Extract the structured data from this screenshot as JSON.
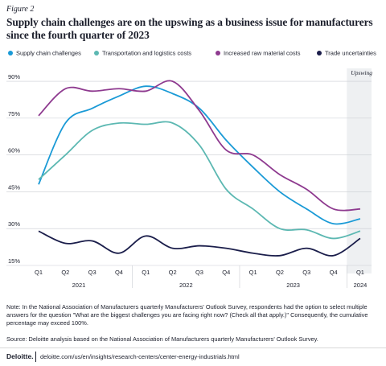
{
  "chart_data": {
    "type": "line",
    "figure_label": "Figure 2",
    "title": "Supply chain challenges are on the upswing as a business issue for manufacturers since the fourth quarter of 2023",
    "categories": [
      "Q1",
      "Q2",
      "Q3",
      "Q4",
      "Q1",
      "Q2",
      "Q3",
      "Q4",
      "Q1",
      "Q2",
      "Q3",
      "Q4",
      "Q1"
    ],
    "years": [
      "2021",
      "2022",
      "2023",
      "2024"
    ],
    "annotation": "Upswing",
    "series": [
      {
        "name": "Supply chain challenges",
        "color": "#1a9ad6",
        "values": [
          48,
          73,
          79,
          84,
          88,
          85,
          79,
          66,
          55,
          45,
          38,
          32,
          34
        ]
      },
      {
        "name": "Transportation and logistics costs",
        "color": "#5cb8b2",
        "values": [
          50,
          60,
          70,
          73,
          72.5,
          73,
          64,
          46,
          38,
          30,
          29.5,
          26,
          29
        ]
      },
      {
        "name": "Increased raw material costs",
        "color": "#8e3a8f",
        "values": [
          76,
          87,
          86,
          87,
          86,
          90,
          78,
          62,
          60,
          52,
          46,
          38,
          38
        ]
      },
      {
        "name": "Trade uncertainties",
        "color": "#1b1e4b",
        "values": [
          29,
          24,
          25,
          20,
          27,
          22,
          23,
          22,
          20,
          19,
          22,
          19,
          26
        ]
      }
    ],
    "ylim": [
      15,
      92
    ],
    "yticks": [
      {
        "value": 15,
        "label": "15%"
      },
      {
        "value": 30,
        "label": "30%"
      },
      {
        "value": 45,
        "label": "45%"
      },
      {
        "value": 60,
        "label": "60%"
      },
      {
        "value": 75,
        "label": "75%"
      },
      {
        "value": 90,
        "label": "90%"
      }
    ],
    "grid": true,
    "legend": "top"
  },
  "notes": {
    "note": "Note: In the National Association of Manufacturers quarterly Manufacturers' Outlook Survey, respondents had the option to select multiple answers for the question \"What are the biggest challenges you are facing right now? (Check all that apply.)\" Consequently, the cumulative percentage may exceed 100%.",
    "source": "Source: Deloitte analysis based on the National Association of Manufacturers quarterly Manufacturers' Outlook Survey."
  },
  "footer": {
    "brand": "Deloitte.",
    "url": "deloitte.com/us/en/insights/research-centers/center-energy-industrials.html"
  }
}
